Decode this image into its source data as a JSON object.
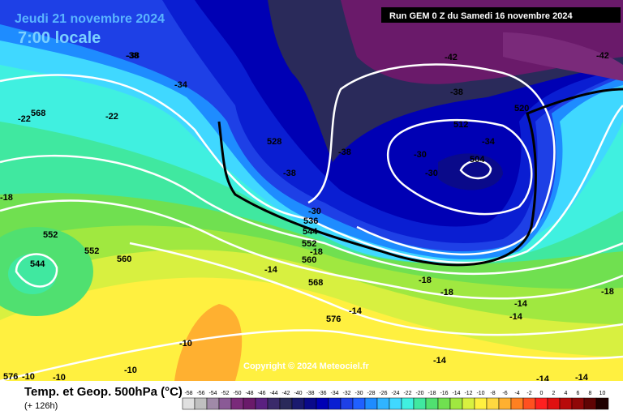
{
  "header": {
    "date": "Jeudi 21 novembre 2024",
    "time": "7:00 locale",
    "run": "Run GEM 0 Z du Samedi 16 novembre 2024"
  },
  "map": {
    "labels": [
      "-38",
      "-34",
      "-42",
      "-42",
      "-38",
      "520",
      "512",
      "-34",
      "-30",
      "504",
      "-30",
      "-38",
      "528",
      "-38",
      "-22",
      "568",
      "-22",
      "-18",
      "552",
      "552",
      "544",
      "560",
      "-14",
      "-30",
      "536",
      "544",
      "552",
      "-18",
      "560",
      "568",
      "-18",
      "-18",
      "-18",
      "-14",
      "576",
      "-14",
      "-14",
      "-10",
      "-14",
      "-10",
      "576",
      "-10",
      "-10",
      "-14",
      "-14",
      "-38"
    ],
    "copyright": "Copyright © 2024 Meteociel.fr"
  },
  "footer": {
    "title": "Temp. et Geop. 500hPa (°C)",
    "lead": "(+ 126h)"
  },
  "legend": {
    "values": [
      -58,
      -56,
      -54,
      -52,
      -50,
      -48,
      -46,
      -44,
      -42,
      -40,
      -38,
      -36,
      -34,
      -32,
      -30,
      -28,
      -26,
      -24,
      -22,
      -20,
      -18,
      -16,
      -14,
      -12,
      -10,
      -8,
      -6,
      -4,
      -2,
      0,
      2,
      4,
      6,
      8,
      10
    ],
    "colors": [
      "#e0e0e0",
      "#c0c0c0",
      "#a08aa8",
      "#8a5a96",
      "#7a2a7a",
      "#6a1a6a",
      "#5a2080",
      "#3a2a6a",
      "#2a2a5a",
      "#1a1a6e",
      "#0a0a8a",
      "#0000b4",
      "#0a1ed2",
      "#1e40e6",
      "#2060ff",
      "#1e8cff",
      "#30b4ff",
      "#40d8ff",
      "#40f0e0",
      "#40e8a0",
      "#50e070",
      "#70e050",
      "#a0e840",
      "#d8f040",
      "#fff040",
      "#ffd840",
      "#ffb030",
      "#ff8020",
      "#ff5020",
      "#ff2020",
      "#e01010",
      "#b80a0a",
      "#900808",
      "#600404",
      "#200000"
    ]
  }
}
